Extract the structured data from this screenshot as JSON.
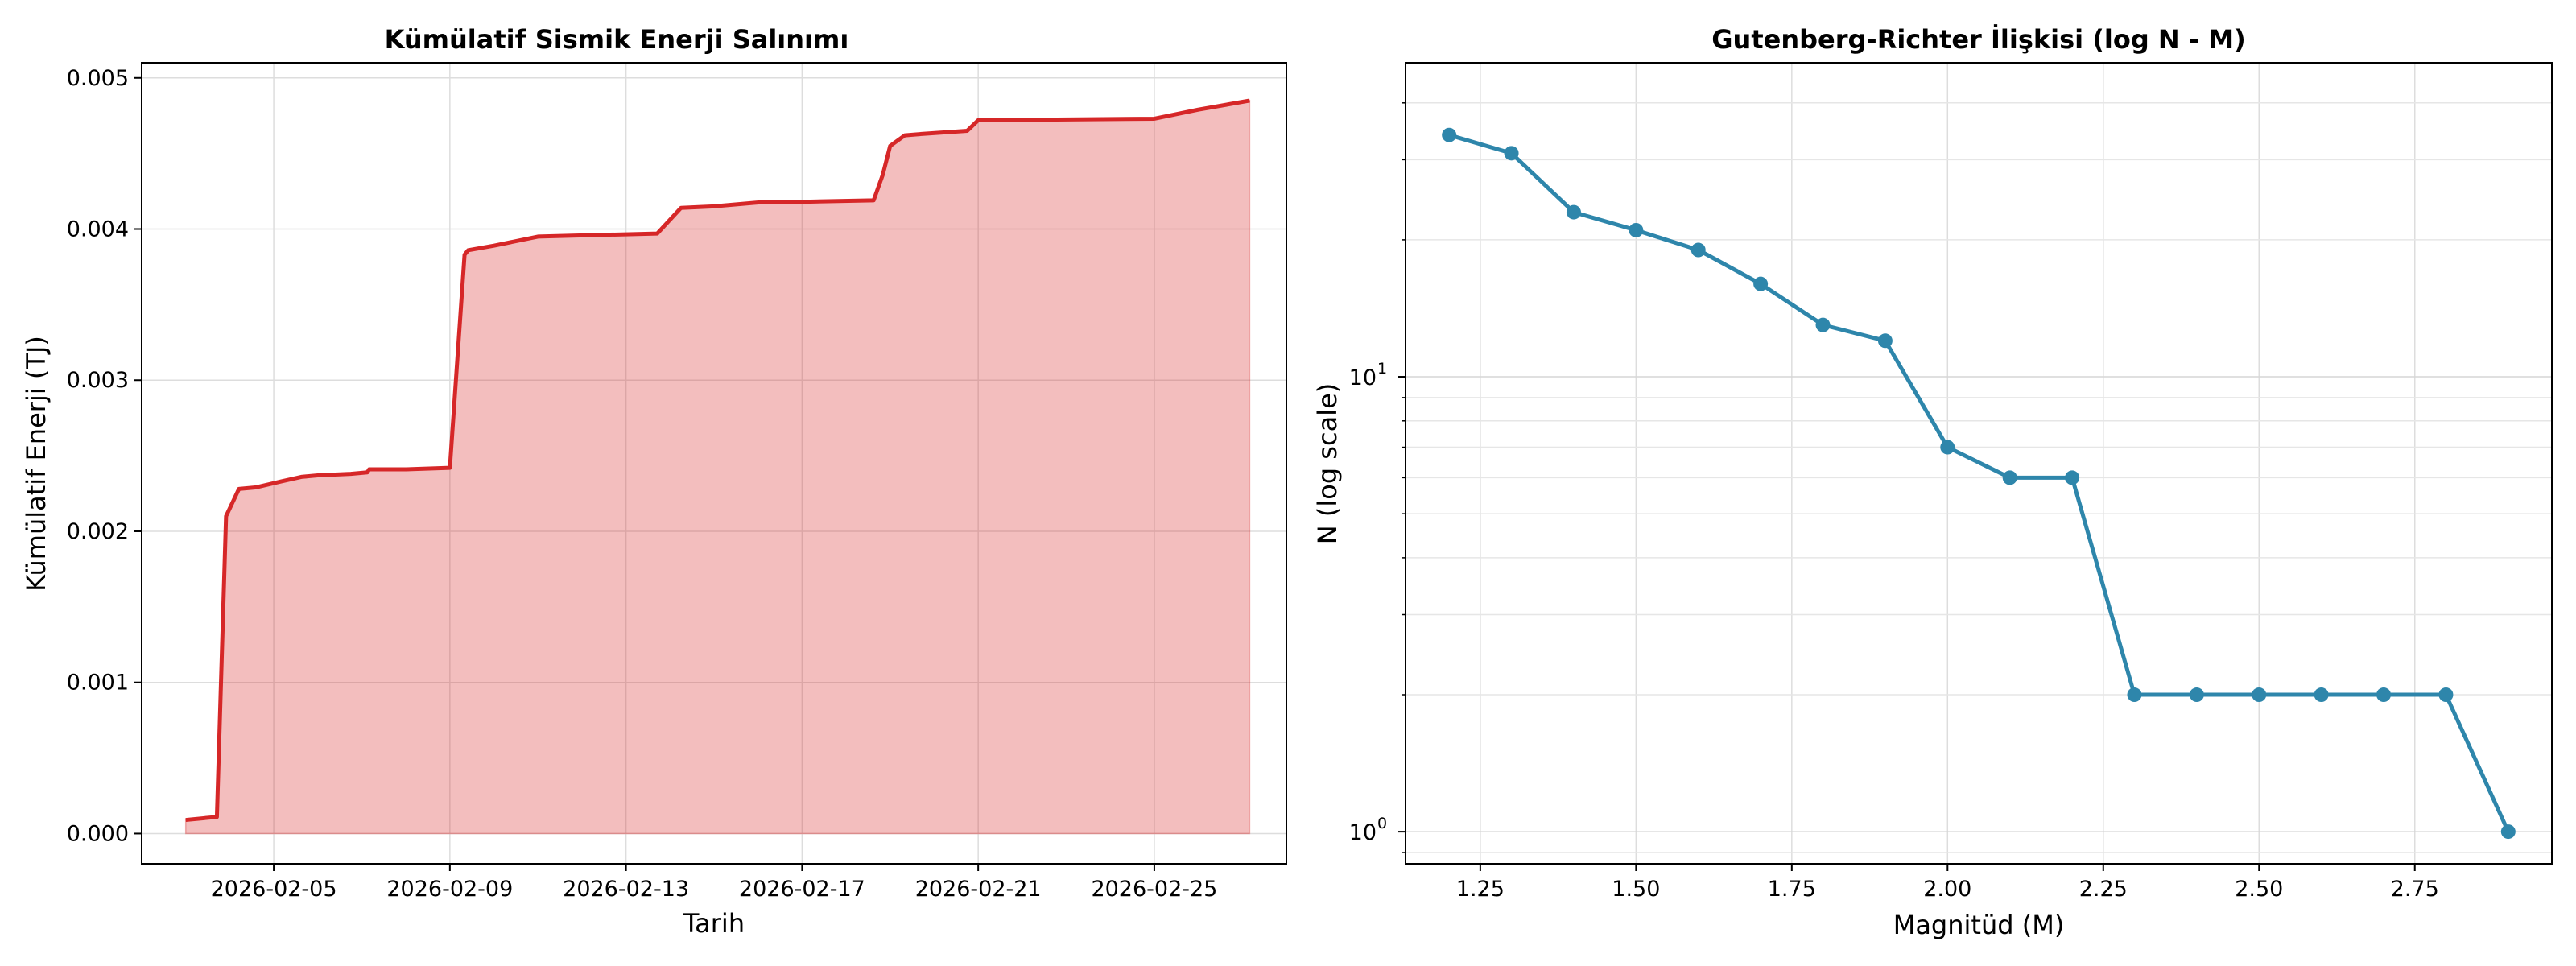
{
  "chart_data": [
    {
      "type": "area",
      "title": "Kümülatif Sismik Enerji Salınımı",
      "xlabel": "Tarih",
      "ylabel": "Kümülatif Enerji (TJ)",
      "x_axis": "date",
      "xlim": [
        "2026-02-02T00:00",
        "2026-02-28T00:00"
      ],
      "ylim": [
        -0.0002,
        0.0051
      ],
      "xticks": [
        "2026-02-05",
        "2026-02-09",
        "2026-02-13",
        "2026-02-17",
        "2026-02-21",
        "2026-02-25"
      ],
      "yticks": [
        "0.000",
        "0.001",
        "0.002",
        "0.003",
        "0.004",
        "0.005"
      ],
      "ytick_values": [
        0,
        0.001,
        0.002,
        0.003,
        0.004,
        0.005
      ],
      "grid": true,
      "line_color": "#d62728",
      "fill_color": "#d62728",
      "fill_alpha": 0.3,
      "series": [
        {
          "x": [
            "2026-02-03T00:00",
            "2026-02-03T17:00",
            "2026-02-03T22:00",
            "2026-02-04T05:00",
            "2026-02-04T14:00",
            "2026-02-05T04:00",
            "2026-02-05T15:00",
            "2026-02-06T00:00",
            "2026-02-06T18:00",
            "2026-02-07T03:00",
            "2026-02-07T04:00",
            "2026-02-08T00:00",
            "2026-02-09T00:00",
            "2026-02-09T08:00",
            "2026-02-09T10:00",
            "2026-02-10T00:00",
            "2026-02-11T00:00",
            "2026-02-12T07:00",
            "2026-02-13T17:00",
            "2026-02-14T06:00",
            "2026-02-15T00:00",
            "2026-02-16T04:00",
            "2026-02-17T00:00",
            "2026-02-18T15:00",
            "2026-02-18T20:00",
            "2026-02-19T00:00",
            "2026-02-19T08:00",
            "2026-02-19T18:00",
            "2026-02-20T18:00",
            "2026-02-21T00:00",
            "2026-02-25T00:00",
            "2026-02-26T00:00",
            "2026-02-27T04:00"
          ],
          "y": [
            9e-05,
            0.00011,
            0.0021,
            0.00228,
            0.00229,
            0.00233,
            0.00236,
            0.00237,
            0.00238,
            0.00239,
            0.00241,
            0.00241,
            0.00242,
            0.00383,
            0.00386,
            0.00389,
            0.00395,
            0.00396,
            0.00397,
            0.00414,
            0.00415,
            0.00418,
            0.00418,
            0.00419,
            0.00436,
            0.00455,
            0.00462,
            0.00463,
            0.00465,
            0.00472,
            0.00473,
            0.00479,
            0.00485
          ]
        }
      ]
    },
    {
      "type": "line",
      "title": "Gutenberg-Richter İlişkisi (log N - M)",
      "xlabel": "Magnitüd (M)",
      "ylabel": "N (log scale)",
      "xlim": [
        1.13,
        2.97
      ],
      "ylim": [
        0.85,
        49
      ],
      "y_scale": "log",
      "xticks": [
        1.25,
        1.5,
        1.75,
        2.0,
        2.25,
        2.5,
        2.75
      ],
      "xtick_labels": [
        "1.25",
        "1.50",
        "1.75",
        "2.00",
        "2.25",
        "2.50",
        "2.75"
      ],
      "yticks": [
        1,
        10
      ],
      "grid": true,
      "line_color": "#2e86ab",
      "series": [
        {
          "x": [
            1.2,
            1.3,
            1.4,
            1.5,
            1.6,
            1.7,
            1.8,
            1.9,
            2.0,
            2.1,
            2.2,
            2.3,
            2.4,
            2.5,
            2.6,
            2.7,
            2.8,
            2.9
          ],
          "y": [
            34,
            31,
            23,
            21,
            19,
            16,
            13,
            12,
            7,
            6,
            6,
            2,
            2,
            2,
            2,
            2,
            2,
            1
          ]
        }
      ]
    }
  ]
}
